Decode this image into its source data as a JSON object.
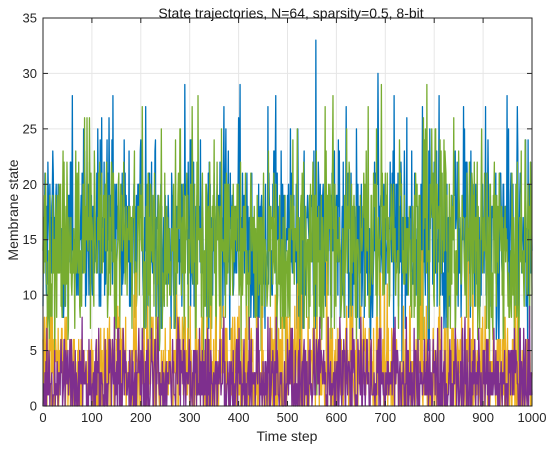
{
  "chart_data": {
    "type": "line",
    "title": "State trajectories, N=64, sparsity=0.5, 8-bit",
    "xlabel": "Time step",
    "ylabel": "Membrane state",
    "xlim": [
      0,
      1000
    ],
    "ylim": [
      0,
      35
    ],
    "xticks": [
      "0",
      "100",
      "200",
      "300",
      "400",
      "500",
      "600",
      "700",
      "800",
      "900",
      "1000"
    ],
    "yticks": [
      "0",
      "5",
      "10",
      "15",
      "20",
      "25",
      "30",
      "35"
    ],
    "grid": true,
    "legend": "none",
    "num_points": 1001,
    "series": [
      {
        "color": "#0072BD",
        "mean": 15.5,
        "spread": 4.5,
        "min": 0,
        "max": 33,
        "peaks": [
          {
            "x": 60,
            "y": 28
          },
          {
            "x": 120,
            "y": 26
          },
          {
            "x": 210,
            "y": 27
          },
          {
            "x": 290,
            "y": 29
          },
          {
            "x": 370,
            "y": 27
          },
          {
            "x": 460,
            "y": 27
          },
          {
            "x": 558,
            "y": 33
          },
          {
            "x": 620,
            "y": 27
          },
          {
            "x": 685,
            "y": 30
          },
          {
            "x": 718,
            "y": 28
          },
          {
            "x": 810,
            "y": 28
          },
          {
            "x": 860,
            "y": 27
          },
          {
            "x": 905,
            "y": 27
          },
          {
            "x": 970,
            "y": 27
          }
        ]
      },
      {
        "color": "#77AC30",
        "mean": 14.5,
        "spread": 5.0,
        "min": 0,
        "max": 29,
        "peaks": [
          {
            "x": 95,
            "y": 26
          },
          {
            "x": 305,
            "y": 27
          },
          {
            "x": 665,
            "y": 27
          },
          {
            "x": 692,
            "y": 29
          },
          {
            "x": 785,
            "y": 29
          },
          {
            "x": 840,
            "y": 26
          }
        ]
      },
      {
        "color": "#EDB120",
        "mean": 3.0,
        "spread": 3.0,
        "min": 0,
        "max": 14,
        "peaks": [
          {
            "x": 190,
            "y": 12
          },
          {
            "x": 580,
            "y": 13
          },
          {
            "x": 690,
            "y": 12
          },
          {
            "x": 775,
            "y": 14
          },
          {
            "x": 870,
            "y": 13
          }
        ]
      },
      {
        "color": "#7E2F8E",
        "mean": 2.5,
        "spread": 2.5,
        "min": 0,
        "max": 9,
        "peaks": [
          {
            "x": 80,
            "y": 8
          },
          {
            "x": 235,
            "y": 8
          },
          {
            "x": 440,
            "y": 8
          },
          {
            "x": 720,
            "y": 8
          },
          {
            "x": 995,
            "y": 9
          }
        ]
      }
    ]
  }
}
